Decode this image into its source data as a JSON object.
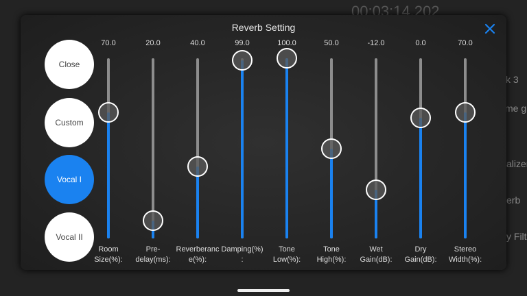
{
  "background": {
    "timer": "00:03:14.202",
    "fragments": [
      "k 3",
      "me g",
      "alizer",
      "erb",
      "y Filt"
    ]
  },
  "dialog": {
    "title": "Reverb Setting",
    "presets": [
      {
        "label": "Close",
        "selected": false
      },
      {
        "label": "Custom",
        "selected": false
      },
      {
        "label": "Vocal I",
        "selected": true
      },
      {
        "label": "Vocal II",
        "selected": false
      }
    ],
    "sliders": [
      {
        "value": "70.0",
        "label": "Room Size(%):"
      },
      {
        "value": "20.0",
        "label": "Pre-delay(ms):"
      },
      {
        "value": "40.0",
        "label": "Reverberance(%):"
      },
      {
        "value": "99.0",
        "label": "Damping(%):"
      },
      {
        "value": "100.0",
        "label": "Tone Low(%):"
      },
      {
        "value": "50.0",
        "label": "Tone High(%):"
      },
      {
        "value": "-12.0",
        "label": "Wet Gain(dB):"
      },
      {
        "value": "0.0",
        "label": "Dry Gain(dB):"
      },
      {
        "value": "70.0",
        "label": "Stereo Width(%):"
      }
    ]
  }
}
